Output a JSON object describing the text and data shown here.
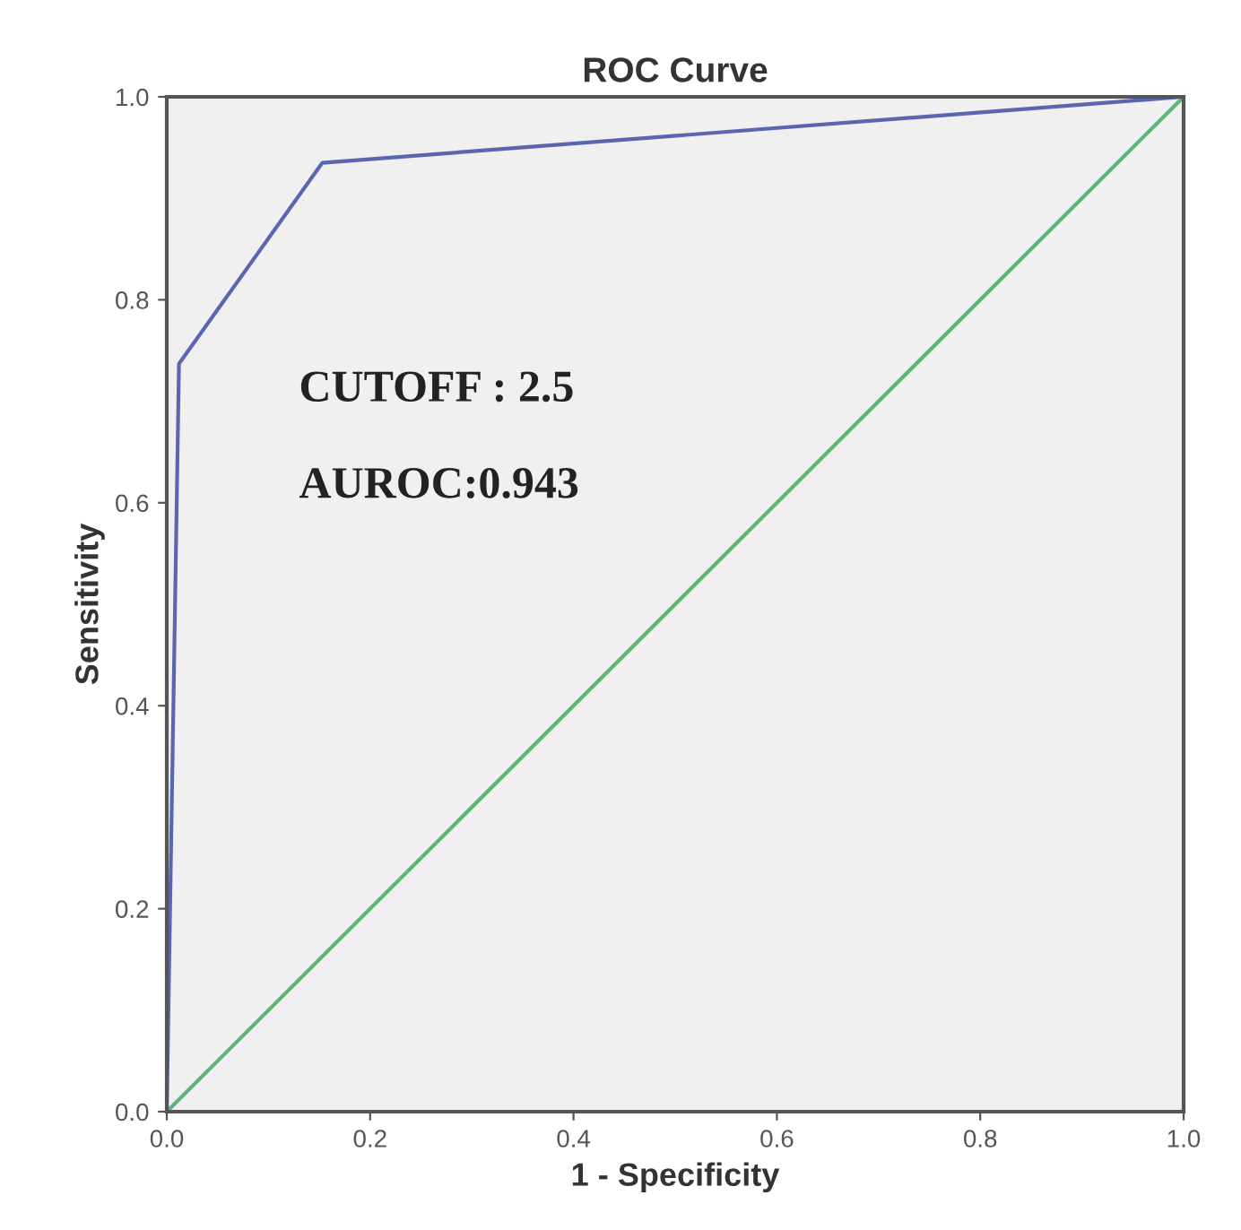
{
  "chart_data": {
    "type": "line",
    "title": "ROC Curve",
    "xlabel": "1 - Specificity",
    "ylabel": "Sensitivity",
    "series": [
      {
        "x": [
          0,
          0.012,
          0.153,
          1
        ],
        "values": [
          0,
          0.737,
          0.935,
          1
        ],
        "color": "#5a66b0"
      },
      {
        "x": [
          0,
          1
        ],
        "values": [
          0,
          1
        ],
        "color": "#5cb47a"
      }
    ],
    "annotations": [
      "CUTOFF : 2.5",
      "AUROC:0.943"
    ],
    "xlim": [
      0,
      1
    ],
    "ylim": [
      0,
      1
    ],
    "xticks": [
      {
        "value": 0,
        "label": "0.0"
      },
      0.2,
      0.4,
      0.6,
      0.8,
      {
        "value": 1,
        "label": "1.0"
      }
    ],
    "yticks": [
      {
        "value": 0,
        "label": "0.0"
      },
      0.2,
      0.4,
      0.6,
      0.8,
      {
        "value": 1,
        "label": "1.0"
      }
    ],
    "grid": false,
    "legend": false,
    "marker": "none",
    "line_style": "solid"
  }
}
